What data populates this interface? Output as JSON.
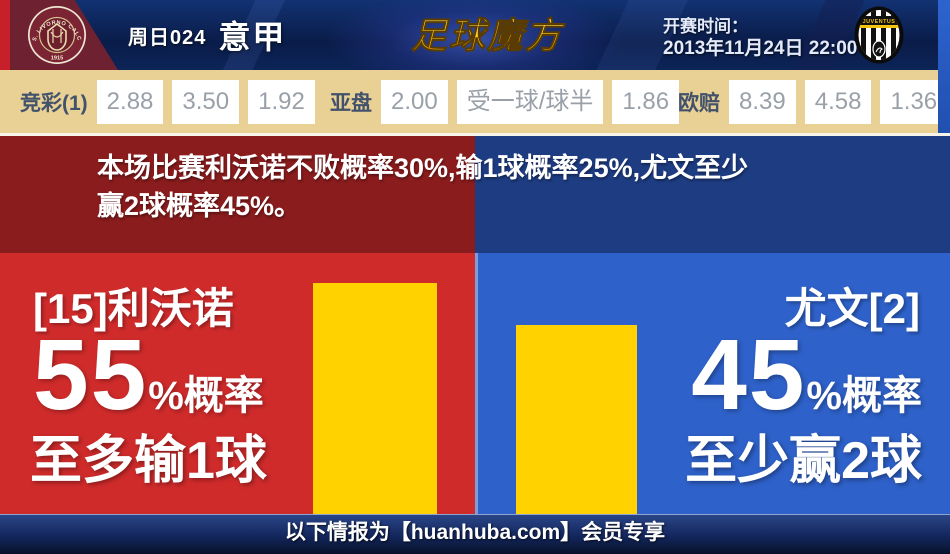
{
  "header": {
    "round_label": "周日024",
    "league_name": "意甲",
    "site_logo_text": "足球魔方",
    "kickoff_label": "开赛时间：",
    "kickoff_time": "2013年11月24日 22:00",
    "home_badge_text": "A.S. LIVORNO CALCIO",
    "home_badge_year": "1915",
    "away_badge_text": "JUVENTUS"
  },
  "odds": {
    "jingcai": {
      "label": "竞彩(1)",
      "values": [
        "2.88",
        "3.50",
        "1.92"
      ]
    },
    "yapan": {
      "label": "亚盘",
      "values": [
        "2.00",
        "受一球/球半",
        "1.86"
      ]
    },
    "oupei": {
      "label": "欧赔",
      "values": [
        "8.39",
        "4.58",
        "1.36"
      ]
    }
  },
  "summary": {
    "line1": "本场比赛利沃诺不败概率30%,输1球概率25%,尤文至少",
    "line2": "赢2球概率45%。"
  },
  "teams": {
    "home": {
      "name": "[15]利沃诺",
      "probability": 55,
      "prob_suffix": "%概率",
      "outcome": "至多输1球"
    },
    "away": {
      "name": "尤文[2]",
      "probability": 45,
      "prob_suffix": "%概率",
      "outcome": "至少赢2球"
    }
  },
  "chart_data": {
    "type": "bar",
    "categories": [
      "[15]利沃诺",
      "尤文[2]"
    ],
    "values": [
      55,
      45
    ],
    "unit": "%",
    "annotations": [
      "至多输1球",
      "至少赢2球"
    ],
    "title": "本场比赛利沃诺不败概率30%,输1球概率25%,尤文至少赢2球概率45%。",
    "bar_color": "#ffd200",
    "ylim": [
      0,
      62
    ],
    "grid": false,
    "legend": false
  },
  "footer": {
    "text": "以下情报为【huanhuba.com】会员专享"
  },
  "colors": {
    "header_navy": "#0a1c49",
    "odds_tan": "#e9d095",
    "banner_red_dark": "#8a1c1d",
    "banner_blue_dark": "#1e3c82",
    "main_red": "#d02b2b",
    "main_blue": "#2e61c9",
    "bar_yellow": "#ffd200",
    "footer_navy": "#13265c",
    "livorno_maroon": "#7b2433"
  }
}
